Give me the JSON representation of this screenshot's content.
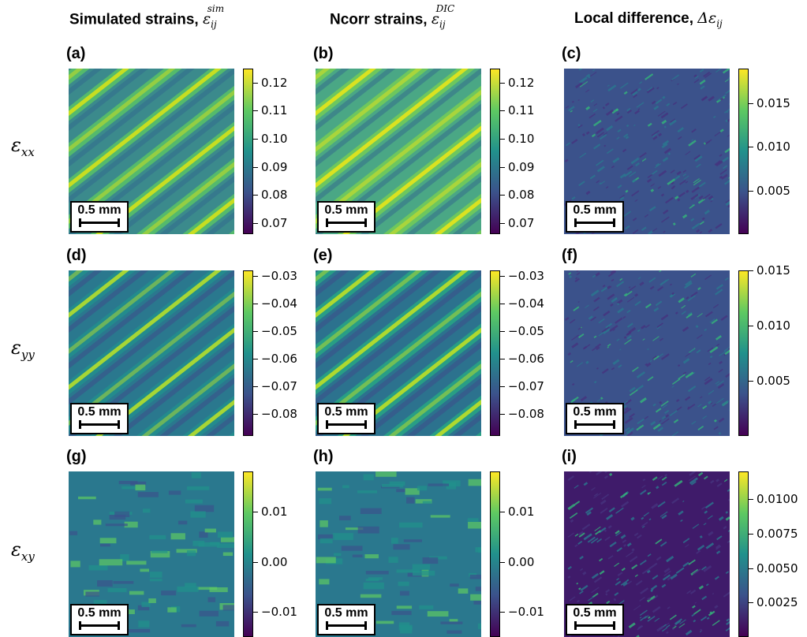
{
  "headers": {
    "sim": {
      "text": "Simulated strains, ",
      "sym": "ε",
      "sub": "ij",
      "sup": "sim"
    },
    "dic": {
      "text": "Ncorr strains, ",
      "sym": "ε",
      "sub": "ij",
      "sup": "DIC"
    },
    "diff": {
      "text": "Local difference, ",
      "sym": "Δε",
      "sub": "ij"
    }
  },
  "rows": [
    {
      "sym": "ε",
      "sub": "xx"
    },
    {
      "sym": "ε",
      "sub": "yy"
    },
    {
      "sym": "ε",
      "sub": "xy"
    }
  ],
  "scalebar_label": "0.5 mm",
  "chart_data": [
    {
      "type": "heatmap",
      "label": "(a)",
      "title": "",
      "row": "εxx",
      "column": "Simulated strains",
      "colorbar": {
        "ticks": [
          "0.12",
          "0.11",
          "0.10",
          "0.09",
          "0.08",
          "0.07"
        ],
        "range": [
          0.066,
          0.125
        ]
      }
    },
    {
      "type": "heatmap",
      "label": "(b)",
      "title": "",
      "row": "εxx",
      "column": "Ncorr strains",
      "colorbar": {
        "ticks": [
          "0.12",
          "0.11",
          "0.10",
          "0.09",
          "0.08",
          "0.07"
        ],
        "range": [
          0.066,
          0.125
        ]
      }
    },
    {
      "type": "heatmap",
      "label": "(c)",
      "title": "",
      "row": "εxx",
      "column": "Local difference",
      "colorbar": {
        "ticks": [
          "0.015",
          "0.010",
          "0.005"
        ],
        "range": [
          0.0,
          0.019
        ]
      }
    },
    {
      "type": "heatmap",
      "label": "(d)",
      "title": "",
      "row": "εyy",
      "column": "Simulated strains",
      "colorbar": {
        "ticks": [
          "−0.03",
          "−0.04",
          "−0.05",
          "−0.06",
          "−0.07",
          "−0.08"
        ],
        "range": [
          -0.088,
          -0.028
        ]
      }
    },
    {
      "type": "heatmap",
      "label": "(e)",
      "title": "",
      "row": "εyy",
      "column": "Ncorr strains",
      "colorbar": {
        "ticks": [
          "−0.03",
          "−0.04",
          "−0.05",
          "−0.06",
          "−0.07",
          "−0.08"
        ],
        "range": [
          -0.088,
          -0.028
        ]
      }
    },
    {
      "type": "heatmap",
      "label": "(f)",
      "title": "",
      "row": "εyy",
      "column": "Local difference",
      "colorbar": {
        "ticks": [
          "0.015",
          "0.010",
          "0.005"
        ],
        "range": [
          0.0,
          0.015
        ]
      }
    },
    {
      "type": "heatmap",
      "label": "(g)",
      "title": "",
      "row": "εxy",
      "column": "Simulated strains",
      "colorbar": {
        "ticks": [
          "0.01",
          "0.00",
          "−0.01"
        ],
        "range": [
          -0.015,
          0.018
        ]
      }
    },
    {
      "type": "heatmap",
      "label": "(h)",
      "title": "",
      "row": "εxy",
      "column": "Ncorr strains",
      "colorbar": {
        "ticks": [
          "0.01",
          "0.00",
          "−0.01"
        ],
        "range": [
          -0.015,
          0.018
        ]
      }
    },
    {
      "type": "heatmap",
      "label": "(i)",
      "title": "",
      "row": "εxy",
      "column": "Local difference",
      "colorbar": {
        "ticks": [
          "0.0100",
          "0.0075",
          "0.0050",
          "0.0025"
        ],
        "range": [
          0.0,
          0.012
        ]
      }
    }
  ],
  "colors": {
    "viridis_low": "#440154",
    "viridis_mid": "#21918c",
    "viridis_high": "#fde725"
  }
}
